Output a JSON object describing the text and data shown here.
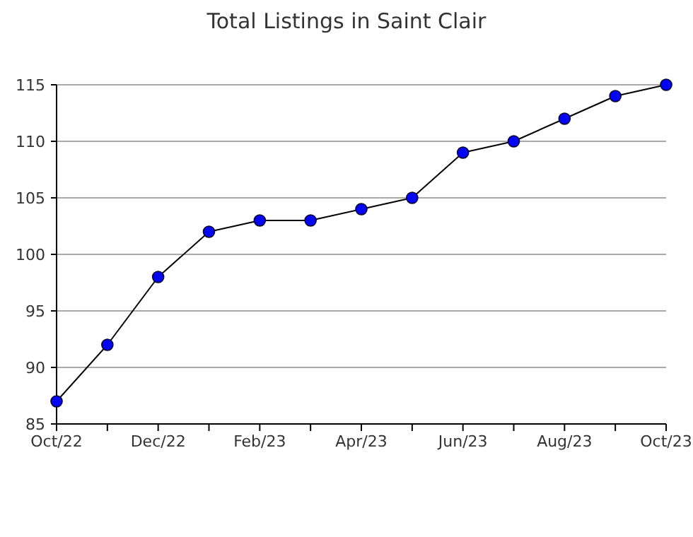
{
  "chart_data": {
    "type": "line",
    "title": "Total Listings in Saint Clair",
    "categories": [
      "Oct/22",
      null,
      "Dec/22",
      null,
      "Feb/23",
      null,
      "Apr/23",
      null,
      "Jun/23",
      null,
      "Aug/23",
      null,
      "Oct/23"
    ],
    "series": [
      {
        "color": "#0000ff",
        "values": [
          87,
          92,
          98,
          102,
          103,
          103,
          104,
          105,
          109,
          110,
          112,
          114,
          115
        ]
      }
    ],
    "ylim": [
      85,
      115
    ],
    "yticks": [
      85,
      90,
      95,
      100,
      105,
      110,
      115
    ],
    "grid": "y",
    "marker": "circle",
    "line_style": "solid"
  }
}
